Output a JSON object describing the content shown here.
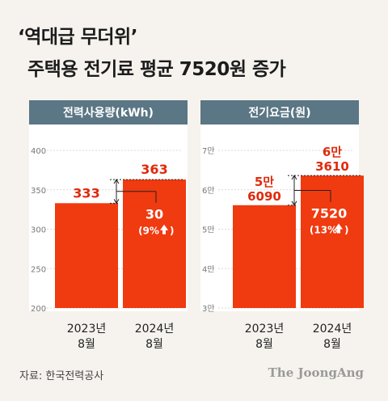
{
  "header": {
    "title_line1": "‘역대급 무더위’",
    "title_line2": "주택용 전기료 평균 7520원 증가"
  },
  "chart_data": [
    {
      "type": "bar",
      "panel_title": "전력사용량(kWh)",
      "categories": [
        "2023년\n8월",
        "2024년\n8월"
      ],
      "values": [
        333,
        363
      ],
      "value_labels": [
        "333",
        "363"
      ],
      "yticks": [
        "400",
        "350",
        "300",
        "250",
        "200"
      ],
      "ylim": [
        200,
        400
      ],
      "diff_label": "30",
      "diff_pct": "(9%",
      "grid": true,
      "bar_color": "#f03a10"
    },
    {
      "type": "bar",
      "panel_title": "전기요금(원)",
      "categories": [
        "2023년\n8월",
        "2024년\n8월"
      ],
      "values": [
        56090,
        63610
      ],
      "value_labels": [
        [
          "5만",
          "6090"
        ],
        [
          "6만",
          "3610"
        ]
      ],
      "yticks": [
        "7만",
        "6만",
        "5만",
        "4만",
        "3만"
      ],
      "ylim": [
        30000,
        70000
      ],
      "diff_label": "7520",
      "diff_pct": "(13%",
      "grid": true,
      "bar_color": "#f03a10"
    }
  ],
  "footer": {
    "source": "자료: 한국전력공사",
    "brand": "The JoongAng"
  },
  "colors": {
    "panel_header": "#5b7684",
    "bar": "#f03a10",
    "accent_text": "#e02a0a"
  }
}
